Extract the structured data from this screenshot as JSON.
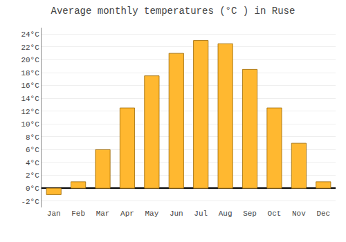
{
  "chart_data": {
    "type": "bar",
    "title": "Average monthly temperatures (°C ) in Ruse",
    "categories": [
      "Jan",
      "Feb",
      "Mar",
      "Apr",
      "May",
      "Jun",
      "Jul",
      "Aug",
      "Sep",
      "Oct",
      "Nov",
      "Dec"
    ],
    "values": [
      -1.0,
      1.0,
      6.0,
      12.5,
      17.5,
      21.0,
      23.0,
      22.5,
      18.5,
      12.5,
      7.0,
      1.0
    ],
    "color": "#FFB830",
    "ylim": [
      -3,
      25
    ],
    "yticks": [
      {
        "value": -2,
        "label": "-2°C"
      },
      {
        "value": 0,
        "label": "0°C"
      },
      {
        "value": 2,
        "label": "2°C"
      },
      {
        "value": 4,
        "label": "4°C"
      },
      {
        "value": 6,
        "label": "6°C"
      },
      {
        "value": 8,
        "label": "8°C"
      },
      {
        "value": 10,
        "label": "10°C"
      },
      {
        "value": 12,
        "label": "12°C"
      },
      {
        "value": 14,
        "label": "14°C"
      },
      {
        "value": 16,
        "label": "16°C"
      },
      {
        "value": 18,
        "label": "18°C"
      },
      {
        "value": 20,
        "label": "20°C"
      },
      {
        "value": 22,
        "label": "22°C"
      },
      {
        "value": 24,
        "label": "24°C"
      }
    ],
    "grid": true
  }
}
